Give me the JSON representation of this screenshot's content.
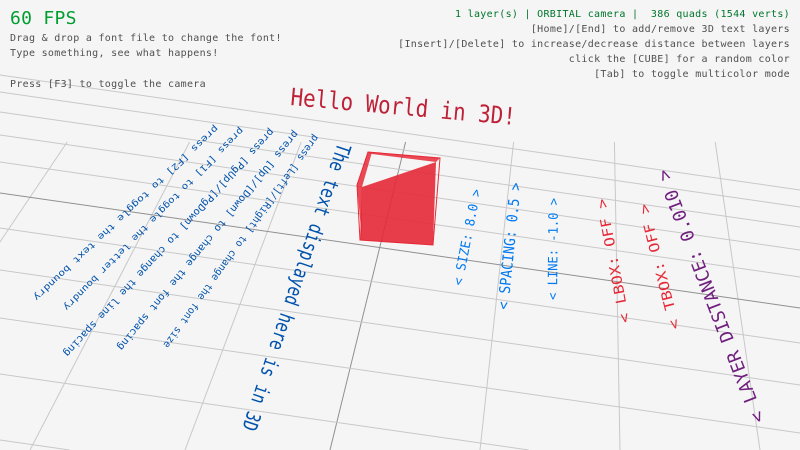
{
  "hud": {
    "fps": "60 FPS",
    "left_lines": [
      "Drag & drop a font file to change the font!",
      "Type something, see what happens!",
      "",
      "Press [F3] to toggle the camera"
    ],
    "status": "1 layer(s) | ORBITAL camera |  386 quads (1544 verts)",
    "right_lines": [
      "[Home]/[End] to add/remove 3D text layers",
      "[Insert]/[Delete] to increase/decrease distance between layers",
      "click the [CUBE] for a random color",
      "[Tab] to toggle multicolor mode"
    ]
  },
  "scene": {
    "title_text": "Hello World in 3D!",
    "floor_text": [
      "press [F2] to toggle the text boundry",
      "press [F1] to toggle the letter boundry",
      "press [PgUp]/[PgDown] to change the line spacing",
      "press [Up]/[Down] to change the font spacing",
      "press [Left]/[Right] to change the font size",
      "The text displayed here is in 3D"
    ],
    "labels": [
      "< SIZE: 8.0 >",
      "< SPACING: 0.5 >",
      "< LINE: -1.0 >",
      "< LBOX: OFF >",
      "< TBOX: OFF >",
      "< LAYER DISTANCE: 0.010 >"
    ]
  },
  "colors": {
    "background": "#f5f5f5",
    "fps": "#009e2f",
    "status": "#00752c",
    "help_text": "#505050",
    "cube": "#e62937",
    "title_text": "#be2137",
    "floor_text": "#0052ac",
    "label_blue": "#0079f1",
    "label_red": "#e62937",
    "label_purple": "#701f7e",
    "grid": "#c8c8c8"
  }
}
